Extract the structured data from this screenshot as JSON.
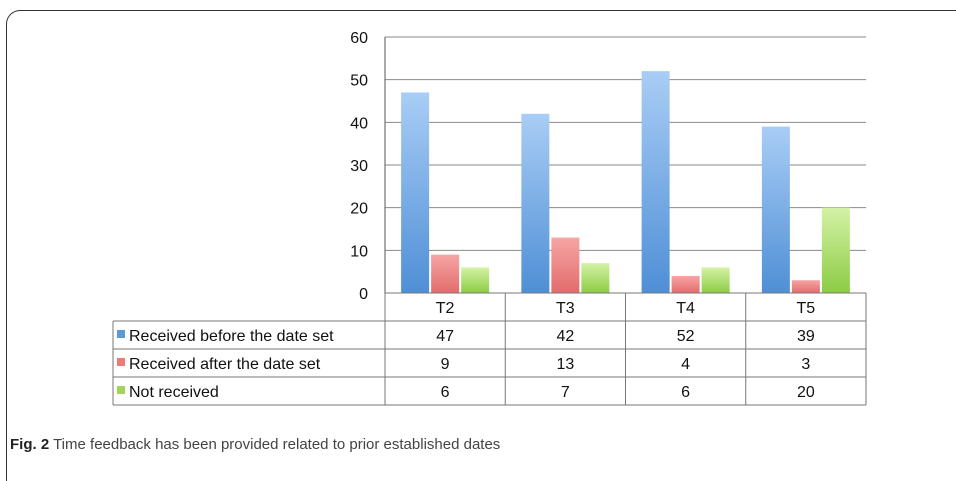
{
  "chart_data": {
    "type": "bar",
    "categories": [
      "T2",
      "T3",
      "T4",
      "T5"
    ],
    "series": [
      {
        "name": "Received before the date set",
        "values": [
          47,
          42,
          52,
          39
        ],
        "color": "#5b9bd5"
      },
      {
        "name": "Received after the date set",
        "values": [
          9,
          13,
          4,
          3
        ],
        "color": "#ef7a7a"
      },
      {
        "name": "Not received",
        "values": [
          6,
          7,
          6,
          20
        ],
        "color": "#9fd65a"
      }
    ],
    "ylim": [
      0,
      60
    ],
    "yticks": [
      0,
      10,
      20,
      30,
      40,
      50,
      60
    ],
    "grid": true,
    "legend": "data-table"
  },
  "caption": {
    "label": "Fig. 2",
    "text": "Time feedback has been provided related to prior established dates"
  }
}
